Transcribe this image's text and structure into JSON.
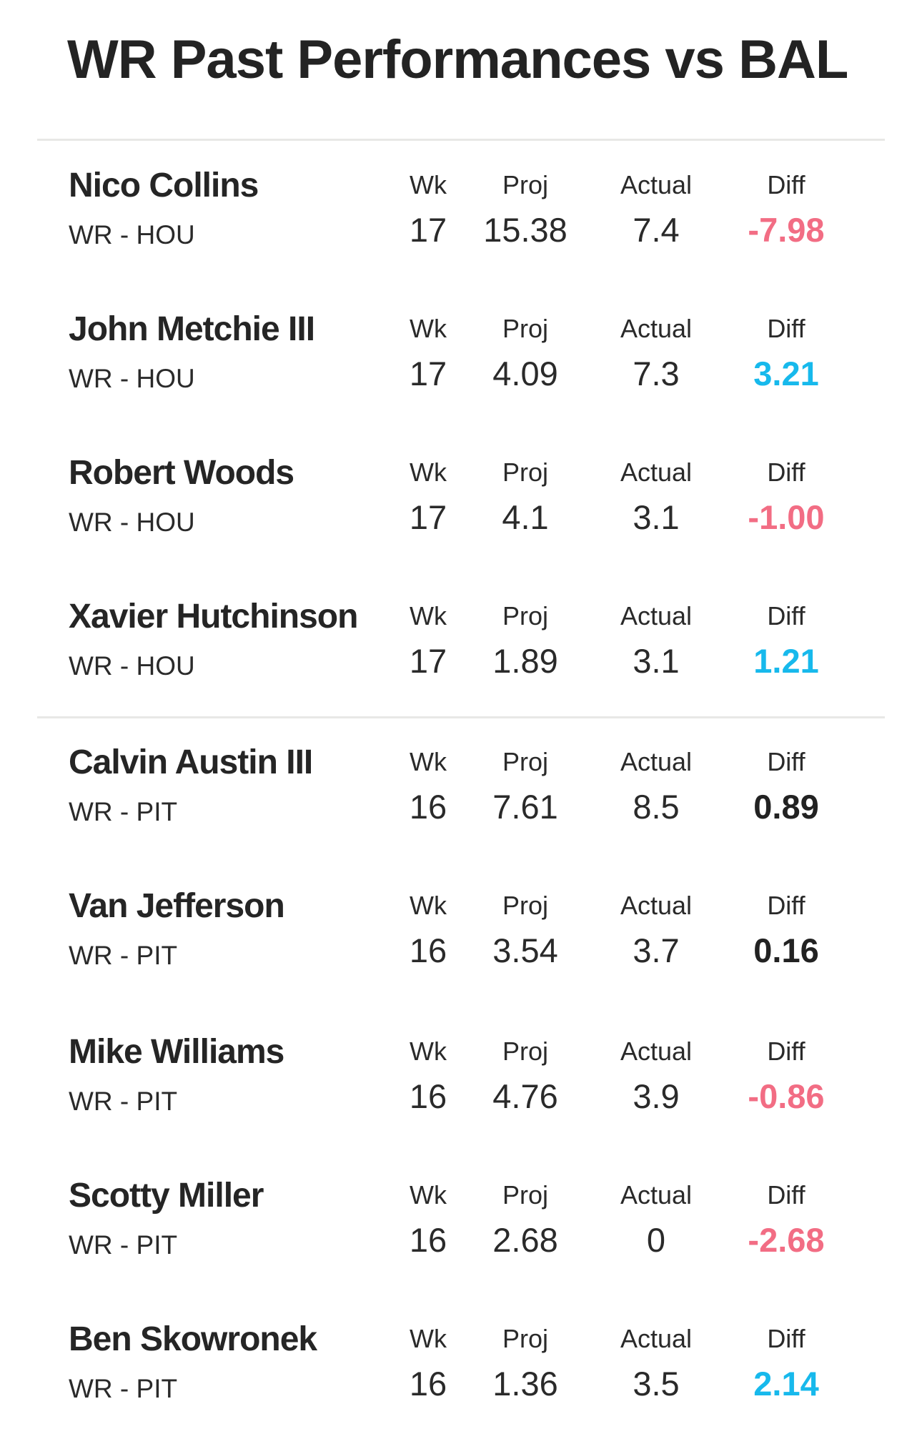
{
  "header": {
    "title": "WR Past Performances vs BAL"
  },
  "columns": {
    "wk": "Wk",
    "proj": "Proj",
    "actual": "Actual",
    "diff": "Diff"
  },
  "colors": {
    "negative": "#f26d84",
    "positive": "#17b9ec",
    "neutral": "#222222"
  },
  "players": [
    {
      "name": "Nico Collins",
      "position": "WR - HOU",
      "wk": "17",
      "proj": "15.38",
      "actual": "7.4",
      "diff": "-7.98",
      "trend": "negative"
    },
    {
      "name": "John Metchie III",
      "position": "WR - HOU",
      "wk": "17",
      "proj": "4.09",
      "actual": "7.3",
      "diff": "3.21",
      "trend": "positive"
    },
    {
      "name": "Robert Woods",
      "position": "WR - HOU",
      "wk": "17",
      "proj": "4.1",
      "actual": "3.1",
      "diff": "-1.00",
      "trend": "negative"
    },
    {
      "name": "Xavier Hutchinson",
      "position": "WR - HOU",
      "wk": "17",
      "proj": "1.89",
      "actual": "3.1",
      "diff": "1.21",
      "trend": "positive"
    },
    {
      "name": "Calvin Austin III",
      "position": "WR - PIT",
      "wk": "16",
      "proj": "7.61",
      "actual": "8.5",
      "diff": "0.89",
      "trend": "neutral"
    },
    {
      "name": "Van Jefferson",
      "position": "WR - PIT",
      "wk": "16",
      "proj": "3.54",
      "actual": "3.7",
      "diff": "0.16",
      "trend": "neutral"
    },
    {
      "name": "Mike Williams",
      "position": "WR - PIT",
      "wk": "16",
      "proj": "4.76",
      "actual": "3.9",
      "diff": "-0.86",
      "trend": "negative"
    },
    {
      "name": "Scotty Miller",
      "position": "WR - PIT",
      "wk": "16",
      "proj": "2.68",
      "actual": "0",
      "diff": "-2.68",
      "trend": "negative"
    },
    {
      "name": "Ben Skowronek",
      "position": "WR - PIT",
      "wk": "16",
      "proj": "1.36",
      "actual": "3.5",
      "diff": "2.14",
      "trend": "positive"
    }
  ]
}
